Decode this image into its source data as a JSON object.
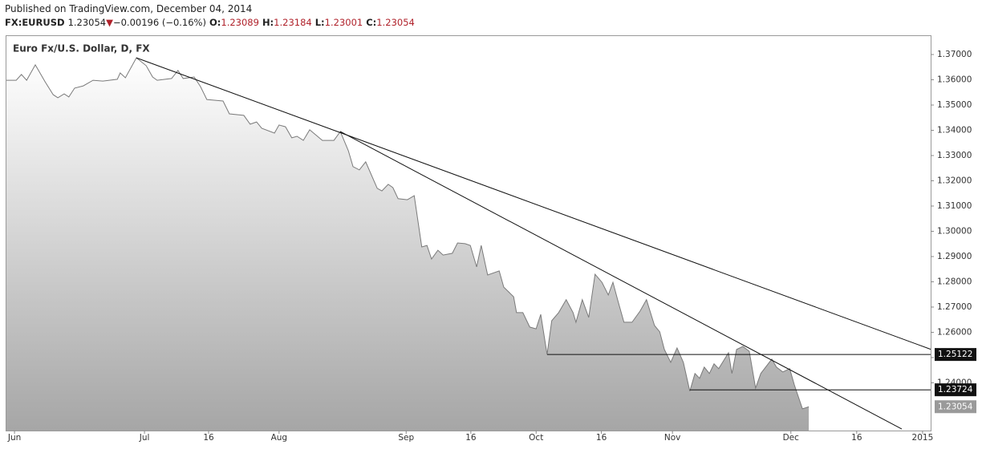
{
  "header": {
    "published": "Published on TradingView.com, December 04, 2014",
    "symbol": "FX:EURUSD",
    "last": 1.23054,
    "arrow": "▼",
    "change": "−0.00196 (−0.16%)",
    "ohlc": [
      {
        "label": "O:",
        "value": 1.23089
      },
      {
        "label": "H:",
        "value": 1.23184
      },
      {
        "label": "L:",
        "value": 1.23001
      },
      {
        "label": "C:",
        "value": 1.23054
      }
    ]
  },
  "chart_data": {
    "type": "area",
    "title": "Euro Fx/U.S. Dollar, D, FX",
    "color": "#7a7a7a",
    "x": [
      0,
      1.7,
      2.6,
      3.5,
      5.0,
      6.7,
      8.1,
      8.9,
      10.0,
      10.8,
      11.8,
      13.3,
      15.0,
      16.7,
      19.2,
      19.7,
      20.6,
      22.5,
      24.2,
      25.3,
      26.1,
      28.6,
      29.7,
      30.6,
      32.5,
      33.6,
      34.7,
      37.5,
      38.6,
      41.1,
      42.2,
      43.3,
      44.2,
      46.4,
      47.2,
      48.3,
      49.4,
      50.3,
      51.4,
      52.5,
      54.7,
      56.7,
      57.8,
      59.2,
      60.0,
      61.1,
      62.2,
      64.2,
      65.0,
      66.1,
      66.9,
      67.8,
      69.4,
      70.6,
      71.9,
      72.8,
      73.6,
      74.7,
      75.6,
      77.2,
      78.1,
      79.4,
      80.3,
      81.4,
      82.2,
      83.3,
      85.3,
      86.1,
      87.8,
      88.3,
      89.4,
      90.6,
      91.7,
      92.5,
      93.6,
      94.4,
      95.6,
      96.9,
      98.1,
      98.6,
      99.7,
      100.8,
      101.9,
      103.1,
      104.2,
      105.0,
      105.8,
      106.9,
      108.3,
      109.7,
      110.8,
      112.2,
      113.1,
      113.9,
      115.0,
      116.1,
      117.2,
      118.3,
      119.2,
      120.0,
      120.8,
      121.7,
      122.5,
      123.3,
      125.0,
      125.6,
      126.4,
      127.5,
      128.6,
      129.7,
      130.6,
      132.5,
      133.3,
      134.4,
      135.6,
      136.4,
      137.8,
      138.9
    ],
    "values": [
      1.3598,
      1.3598,
      1.3621,
      1.3598,
      1.3659,
      1.3592,
      1.3541,
      1.3529,
      1.3544,
      1.3532,
      1.3567,
      1.3576,
      1.3598,
      1.3595,
      1.3602,
      1.3627,
      1.3608,
      1.3687,
      1.3656,
      1.3611,
      1.3598,
      1.3605,
      1.3637,
      1.3605,
      1.3611,
      1.3573,
      1.3522,
      1.3516,
      1.3465,
      1.3459,
      1.3424,
      1.3433,
      1.3408,
      1.3389,
      1.3421,
      1.3414,
      1.337,
      1.3376,
      1.336,
      1.3402,
      1.336,
      1.336,
      1.3395,
      1.3319,
      1.3256,
      1.3243,
      1.3275,
      1.317,
      1.316,
      1.3186,
      1.3173,
      1.3129,
      1.3125,
      1.3141,
      1.2938,
      1.2944,
      1.289,
      1.2925,
      1.2906,
      1.2913,
      1.2954,
      1.2951,
      1.2944,
      1.2859,
      1.2944,
      1.2827,
      1.2843,
      1.2779,
      1.2741,
      1.2678,
      1.2678,
      1.2621,
      1.2614,
      1.2671,
      1.2513,
      1.2646,
      1.2678,
      1.2729,
      1.2678,
      1.264,
      1.2729,
      1.2659,
      1.283,
      1.2798,
      1.2748,
      1.2798,
      1.2729,
      1.264,
      1.264,
      1.2684,
      1.2729,
      1.2627,
      1.2602,
      1.2532,
      1.2481,
      1.2538,
      1.2481,
      1.2367,
      1.2437,
      1.2418,
      1.2462,
      1.2437,
      1.2475,
      1.2456,
      1.2519,
      1.2437,
      1.2532,
      1.2544,
      1.2525,
      1.2379,
      1.2437,
      1.2494,
      1.2462,
      1.2443,
      1.2456,
      1.2392,
      1.2297,
      1.2305
    ],
    "xlim": [
      0,
      160
    ],
    "ylim": [
      1.2211,
      1.3773
    ],
    "xticks": [
      {
        "value": 1.4,
        "label": "Jun"
      },
      {
        "value": 23.9,
        "label": "Jul"
      },
      {
        "value": 35.0,
        "label": "16"
      },
      {
        "value": 47.2,
        "label": "Aug"
      },
      {
        "value": 69.2,
        "label": "Sep"
      },
      {
        "value": 80.4,
        "label": "16"
      },
      {
        "value": 91.7,
        "label": "Oct"
      },
      {
        "value": 103.0,
        "label": "16"
      },
      {
        "value": 115.3,
        "label": "Nov"
      },
      {
        "value": 135.8,
        "label": "Dec"
      },
      {
        "value": 147.2,
        "label": "16"
      },
      {
        "value": 158.6,
        "label": "2015"
      }
    ],
    "yticks": [
      {
        "value": 1.24,
        "label": "1.24000"
      },
      {
        "value": 1.25,
        "label": "1.25000"
      },
      {
        "value": 1.26,
        "label": "1.26000"
      },
      {
        "value": 1.27,
        "label": "1.27000"
      },
      {
        "value": 1.28,
        "label": "1.28000"
      },
      {
        "value": 1.29,
        "label": "1.29000"
      },
      {
        "value": 1.3,
        "label": "1.30000"
      },
      {
        "value": 1.31,
        "label": "1.31000"
      },
      {
        "value": 1.32,
        "label": "1.32000"
      },
      {
        "value": 1.33,
        "label": "1.33000"
      },
      {
        "value": 1.34,
        "label": "1.34000"
      },
      {
        "value": 1.35,
        "label": "1.35000"
      },
      {
        "value": 1.36,
        "label": "1.36000"
      },
      {
        "value": 1.37,
        "label": "1.37000"
      }
    ],
    "trend_lines": [
      {
        "x": [
          22.5,
          160
        ],
        "values": [
          1.3687,
          1.2533
        ]
      },
      {
        "x": [
          57.8,
          155.0
        ],
        "values": [
          1.3395,
          1.2217
        ]
      }
    ],
    "levels": [
      {
        "x": [
          93.6,
          160
        ],
        "values": [
          1.25122,
          1.25122
        ]
      },
      {
        "x": [
          118.3,
          160
        ],
        "values": [
          1.23724,
          1.23724
        ]
      }
    ],
    "price_labels": [
      {
        "value": 1.25122,
        "style": "dark"
      },
      {
        "value": 1.23724,
        "style": "dark"
      },
      {
        "value": 1.23054,
        "style": "light"
      }
    ]
  }
}
